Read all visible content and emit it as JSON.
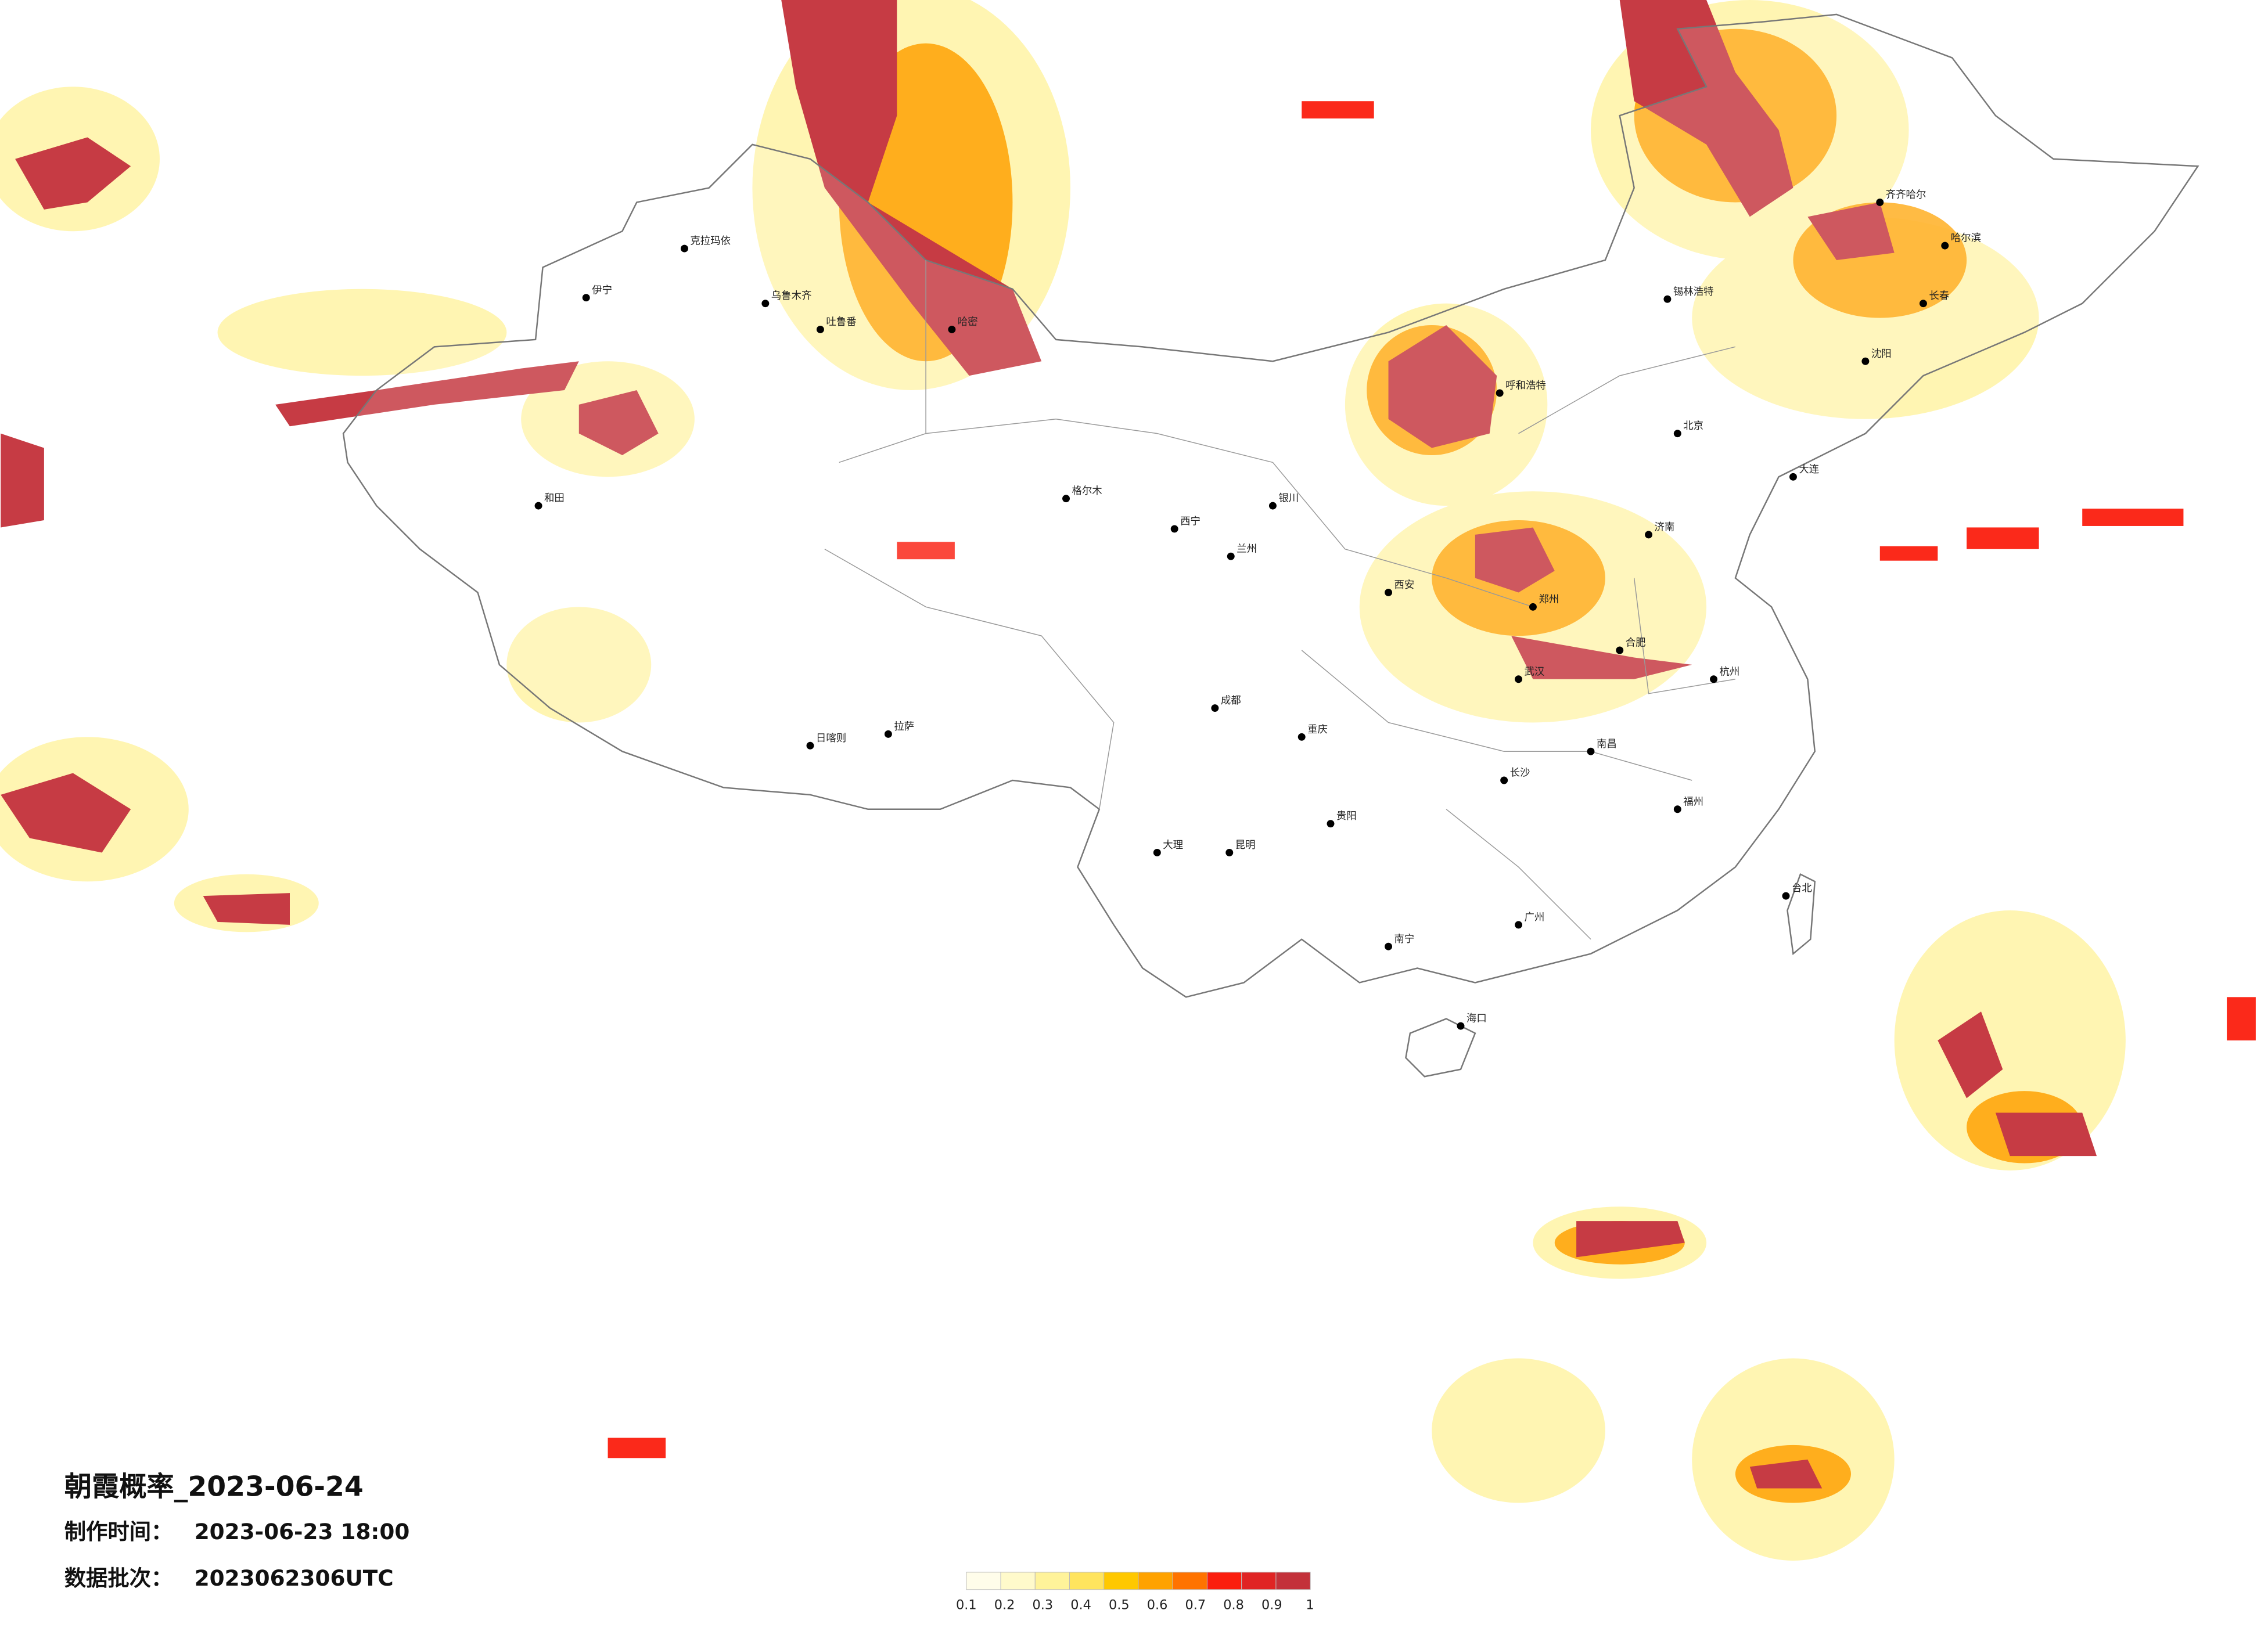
{
  "title": "朝霞概率_2023-06-24",
  "made_time": {
    "label": "制作时间：",
    "value": "2023-06-23 18:00"
  },
  "batch": {
    "label": "数据批次：",
    "value": "2023062306UTC"
  },
  "legend": {
    "colors": [
      "#fffdea",
      "#fffacb",
      "#fff39a",
      "#ffe45e",
      "#ffc800",
      "#ffa200",
      "#ff7300",
      "#fb1e0e",
      "#e02424",
      "#c3313a"
    ],
    "labels": [
      "0.1",
      "0.2",
      "0.3",
      "0.4",
      "0.5",
      "0.6",
      "0.7",
      "0.8",
      "0.9",
      "1"
    ]
  },
  "cities": [
    "克拉玛依",
    "乌鲁木齐",
    "伊宁",
    "吐鲁番",
    "和田",
    "哈密",
    "格尔木",
    "拉萨",
    "日喀则",
    "西宁",
    "兰州",
    "银川",
    "呼和浩特",
    "锡林浩特",
    "齐齐哈尔",
    "哈尔滨",
    "长春",
    "沈阳",
    "大连",
    "北京",
    "济南",
    "郑州",
    "西安",
    "成都",
    "重庆",
    "武汉",
    "长沙",
    "南昌",
    "合肥",
    "杭州",
    "福州",
    "广州",
    "南宁",
    "贵阳",
    "昆明",
    "海口",
    "台北",
    "大理"
  ]
}
